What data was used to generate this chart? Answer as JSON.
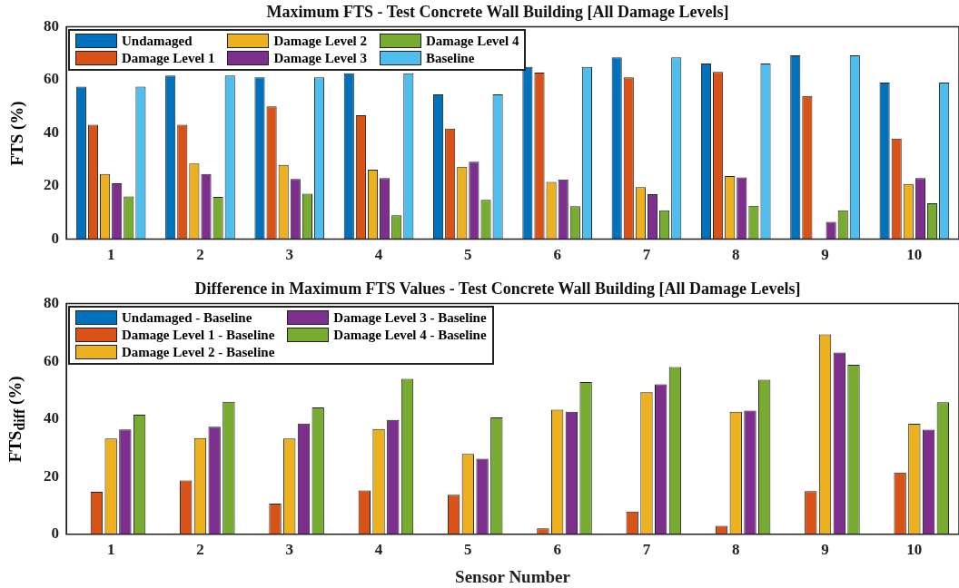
{
  "chart_data": [
    {
      "type": "bar",
      "title": "Maximum FTS - Test Concrete Wall Building [All Damage Levels]",
      "ylabel": "FTS (%)",
      "categories": [
        "1",
        "2",
        "3",
        "4",
        "5",
        "6",
        "7",
        "8",
        "9",
        "10"
      ],
      "ylim": [
        0,
        80
      ],
      "yticks": [
        0,
        20,
        40,
        60,
        80
      ],
      "legend": "top left",
      "series": [
        {
          "name": "Undamaged",
          "color": "#0072bd",
          "values": [
            57.5,
            61.7,
            61,
            62.5,
            54.6,
            64.9,
            68.5,
            66.2,
            69.3,
            59
          ]
        },
        {
          "name": "Damage Level 1",
          "color": "#d95319",
          "values": [
            43.1,
            43.1,
            50,
            46.7,
            41.7,
            62.8,
            61,
            63,
            54,
            37.9
          ]
        },
        {
          "name": "Damage Level 2",
          "color": "#edb120",
          "values": [
            24.6,
            28.5,
            28,
            26.2,
            27.3,
            21.6,
            19.6,
            23.8,
            0,
            20.8
          ]
        },
        {
          "name": "Damage Level 3",
          "color": "#7e2f8e",
          "values": [
            21.1,
            24.6,
            22.7,
            23,
            29.2,
            22.5,
            17,
            23.3,
            6.5,
            23
          ]
        },
        {
          "name": "Damage Level 4",
          "color": "#77ac30",
          "values": [
            16.1,
            15.9,
            17.1,
            9,
            14.8,
            12.4,
            10.9,
            12.6,
            10.9,
            13.5
          ]
        },
        {
          "name": "Baseline",
          "color": "#4dbeee",
          "values": [
            57.5,
            61.7,
            61,
            62.5,
            54.6,
            64.9,
            68.5,
            66.2,
            69.3,
            59
          ]
        }
      ]
    },
    {
      "type": "bar",
      "title": "Difference in Maximum FTS Values - Test Concrete Wall Building [All Damage Levels]",
      "xlabel": "Sensor Number",
      "ylabel": "FTS$_{diff}$ (%)",
      "categories": [
        "1",
        "2",
        "3",
        "4",
        "5",
        "6",
        "7",
        "8",
        "9",
        "10"
      ],
      "ylim": [
        0,
        80
      ],
      "yticks": [
        0,
        20,
        40,
        60,
        80
      ],
      "legend": "top left",
      "series": [
        {
          "name": "Undamaged - Baseline",
          "color": "#0072bd",
          "values": [
            0,
            0,
            0,
            0,
            0,
            0,
            0,
            0,
            0,
            0
          ]
        },
        {
          "name": "Damage Level 1 - Baseline",
          "color": "#d95319",
          "values": [
            14.7,
            18.7,
            10.6,
            15.2,
            13.7,
            2.1,
            7.9,
            2.9,
            15,
            21.4
          ]
        },
        {
          "name": "Damage Level 2 - Baseline",
          "color": "#edb120",
          "values": [
            33.2,
            33.4,
            33.2,
            36.5,
            27.9,
            43.2,
            49.3,
            42.5,
            69.3,
            38.3
          ]
        },
        {
          "name": "Damage Level 3 - Baseline",
          "color": "#7e2f8e",
          "values": [
            36.4,
            37.3,
            38.4,
            39.7,
            26.2,
            42.5,
            52,
            42.9,
            63,
            36.3
          ]
        },
        {
          "name": "Damage Level 4 - Baseline",
          "color": "#77ac30",
          "values": [
            41.5,
            46,
            44,
            53.9,
            40.5,
            52.8,
            58,
            53.6,
            58.8,
            45.8
          ]
        }
      ]
    }
  ]
}
